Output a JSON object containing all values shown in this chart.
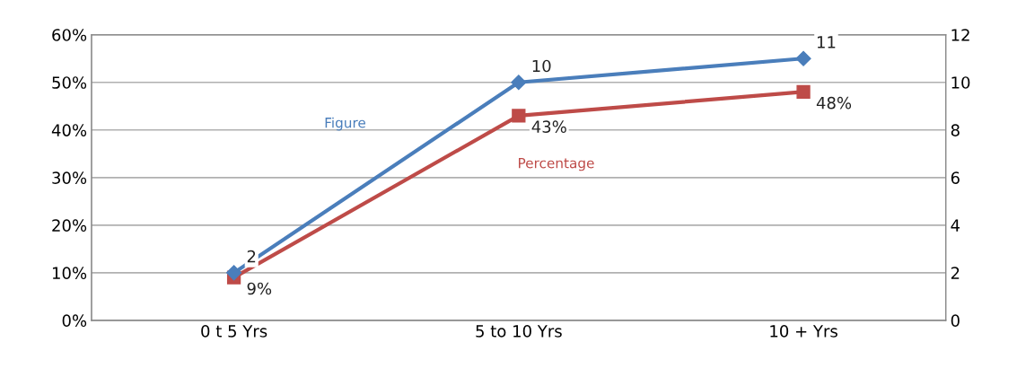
{
  "chart_data": {
    "type": "line",
    "categories": [
      "0 t 5 Yrs",
      "5 to 10 Yrs",
      "10 + Yrs"
    ],
    "series": [
      {
        "name": "Figure",
        "color": "#4a7ebb",
        "values": [
          2,
          10,
          11
        ],
        "axis": "y2",
        "marker": "diamond",
        "value_labels": [
          "2",
          "10",
          "11"
        ]
      },
      {
        "name": "Percentage",
        "color": "#be4b48",
        "values": [
          9,
          43,
          48
        ],
        "marker": "square",
        "value_labels": [
          "9%",
          "43%",
          "48%"
        ]
      }
    ],
    "ylim": [
      0,
      60
    ],
    "yticks": [
      {
        "value": 0,
        "label": "0%"
      },
      {
        "value": 10,
        "label": "10%"
      },
      {
        "value": 20,
        "label": "20%"
      },
      {
        "value": 30,
        "label": "30%"
      },
      {
        "value": 40,
        "label": "40%"
      },
      {
        "value": 50,
        "label": "50%"
      },
      {
        "value": 60,
        "label": "60%"
      }
    ],
    "y2lim": [
      0,
      12
    ],
    "y2ticks": [
      0,
      2,
      4,
      6,
      8,
      10,
      12
    ],
    "grid": "y",
    "legend": false,
    "line_style": "solid"
  }
}
